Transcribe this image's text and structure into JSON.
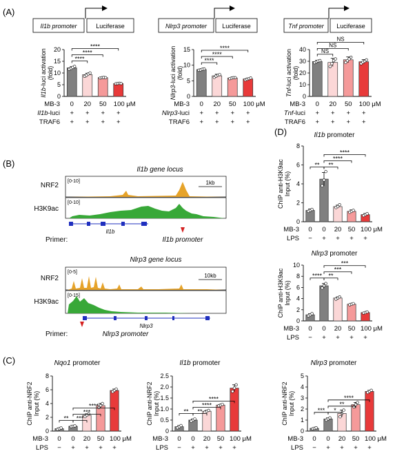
{
  "panel_labels": {
    "A": "(A)",
    "B": "(B)",
    "C": "(C)",
    "D": "(D)"
  },
  "unit": "μM",
  "panelA": {
    "constructs": [
      {
        "promoter": "Il1b promoter",
        "reporter": "Luciferase"
      },
      {
        "promoter": "Nlrp3 promoter",
        "reporter": "Luciferase"
      },
      {
        "promoter": "Tnf promoter",
        "reporter": "Luciferase"
      }
    ],
    "row_labels": [
      "MB-3",
      "",
      "TRAF6"
    ],
    "doses": [
      "0",
      "20",
      "50",
      "100 μM"
    ],
    "signs": [
      "+",
      "+",
      "+",
      "+"
    ]
  },
  "panelB": {
    "il1b": {
      "title": "Il1b gene locus",
      "track1": {
        "name": "NRF2",
        "range": "[0-10]"
      },
      "track2": {
        "name": "H3K9ac",
        "range": "[0-10]"
      },
      "scale": "1kb",
      "gene": "Il1b",
      "primer_label": "Primer:",
      "promoter": "Il1b promoter"
    },
    "nlrp3": {
      "title": "Nlrp3 gene locus",
      "track1": {
        "name": "NRF2",
        "range": "[0-5]"
      },
      "track2": {
        "name": "H3K9ac",
        "range": "[0-15]"
      },
      "scale": "10kb",
      "gene": "Nlrp3",
      "primer_label": "Primer:",
      "promoter": "Nlrp3 promoter"
    }
  },
  "lps_row": {
    "mb3": "MB-3",
    "lps": "LPS",
    "doses": [
      "0",
      "0",
      "20",
      "50",
      "100 μM"
    ],
    "signs": [
      "−",
      "+",
      "+",
      "+",
      "+"
    ]
  },
  "colors": [
    "#808080",
    "#fbd7d7",
    "#f59a9a",
    "#ef6b6b",
    "#e83a3a"
  ],
  "chart_data": [
    {
      "type": "bar",
      "panel": "A",
      "categories": [
        "0",
        "20",
        "50",
        "100"
      ],
      "values": [
        12.2,
        9.3,
        8.0,
        5.5
      ],
      "errors": [
        0.5,
        0.6,
        0.2,
        0.2
      ],
      "points": [
        [
          11.6,
          12.0,
          12.4,
          12.8
        ],
        [
          8.6,
          9.0,
          9.6,
          10.0
        ],
        [
          7.9,
          8.0,
          8.1,
          8.0
        ],
        [
          5.4,
          5.5,
          5.6,
          5.5
        ]
      ],
      "ylabel": "Il1b-luci activation (fold)",
      "ylim": [
        0,
        20
      ],
      "yticks": [
        "0",
        "5",
        "10",
        "15",
        "20"
      ],
      "bracket_start": 0,
      "brackets": [
        {
          "to": 1,
          "label": "****"
        },
        {
          "to": 2,
          "label": "****"
        },
        {
          "to": 3,
          "label": "****"
        }
      ],
      "row2": "Il1b-luci"
    },
    {
      "type": "bar",
      "panel": "A",
      "categories": [
        "0",
        "20",
        "50",
        "100"
      ],
      "values": [
        8.6,
        6.6,
        5.9,
        5.6
      ],
      "errors": [
        0.2,
        0.5,
        0.2,
        0.3
      ],
      "points": [
        [
          8.4,
          8.5,
          8.7,
          8.8
        ],
        [
          6.1,
          6.5,
          6.8,
          7.0
        ],
        [
          5.7,
          5.9,
          6.0,
          6.0
        ],
        [
          5.3,
          5.5,
          5.7,
          5.9
        ]
      ],
      "ylabel": "Nlrp3-luci activation (fold)",
      "ylim": [
        0,
        15
      ],
      "yticks": [
        "0",
        "5",
        "10",
        "15"
      ],
      "bracket_start": 0,
      "brackets": [
        {
          "to": 1,
          "label": "****"
        },
        {
          "to": 2,
          "label": "****"
        },
        {
          "to": 3,
          "label": "****"
        }
      ],
      "row2": "Nlrp3-luci"
    },
    {
      "type": "bar",
      "panel": "A",
      "categories": [
        "0",
        "20",
        "50",
        "100"
      ],
      "values": [
        29.8,
        29.0,
        31.3,
        29.6
      ],
      "errors": [
        1.0,
        3.5,
        2.4,
        1.8
      ],
      "points": [
        [
          28.8,
          29.6,
          30.2,
          30.6
        ],
        [
          25.5,
          28.0,
          30.5,
          32.0
        ],
        [
          29.0,
          30.5,
          32.0,
          33.5
        ],
        [
          28.0,
          29.2,
          30.0,
          31.2
        ]
      ],
      "ylabel": "Tnf-luci activation (fold)",
      "ylim": [
        0,
        40
      ],
      "yticks": [
        "0",
        "10",
        "20",
        "30",
        "40"
      ],
      "bracket_start": 0,
      "brackets": [
        {
          "to": 1,
          "label": "NS"
        },
        {
          "to": 2,
          "label": "NS"
        },
        {
          "to": 3,
          "label": "NS"
        }
      ],
      "row2": "Tnf-luci"
    },
    {
      "type": "bar",
      "panel": "D",
      "title": "Il1b promoter",
      "categories": [
        "0",
        "0",
        "20",
        "50",
        "100"
      ],
      "values": [
        1.2,
        4.5,
        1.6,
        1.1,
        0.75
      ],
      "errors": [
        0.15,
        0.7,
        0.15,
        0.15,
        0.12
      ],
      "points": [
        [
          1.1,
          1.2,
          1.3
        ],
        [
          3.8,
          4.4,
          5.3
        ],
        [
          1.5,
          1.6,
          1.8
        ],
        [
          1.0,
          1.1,
          1.2
        ],
        [
          0.65,
          0.75,
          0.85
        ]
      ],
      "ylabel": "ChIP anti-H3K9ac Input (%)",
      "ylim": [
        0,
        8
      ],
      "yticks": [
        "0",
        "2",
        "4",
        "6",
        "8"
      ],
      "bracket_pairs": [
        {
          "from": 0,
          "to": 1,
          "label": "**"
        },
        {
          "from": 1,
          "to": 2,
          "label": "**"
        },
        {
          "from": 1,
          "to": 3,
          "label": "****"
        },
        {
          "from": 1,
          "to": 4,
          "label": "****"
        }
      ]
    },
    {
      "type": "bar",
      "panel": "D",
      "title": "Nlrp3 promoter",
      "categories": [
        "0",
        "0",
        "20",
        "50",
        "100"
      ],
      "values": [
        1.1,
        6.3,
        4.1,
        3.0,
        1.5
      ],
      "errors": [
        0.2,
        0.4,
        0.2,
        0.1,
        0.1
      ],
      "points": [
        [
          0.9,
          1.1,
          1.3
        ],
        [
          5.9,
          6.3,
          6.7
        ],
        [
          3.9,
          4.1,
          4.3
        ],
        [
          2.9,
          3.0,
          3.1
        ],
        [
          1.4,
          1.5,
          1.6
        ]
      ],
      "ylabel": "ChIP anti-H3K9ac Input (%)",
      "ylim": [
        0,
        10
      ],
      "yticks": [
        "0",
        "2",
        "4",
        "6",
        "8",
        "10"
      ],
      "bracket_pairs": [
        {
          "from": 0,
          "to": 1,
          "label": "****"
        },
        {
          "from": 1,
          "to": 2,
          "label": "**"
        },
        {
          "from": 1,
          "to": 3,
          "label": "***"
        },
        {
          "from": 1,
          "to": 4,
          "label": "***"
        }
      ]
    },
    {
      "type": "bar",
      "panel": "C",
      "title": "Nqo1 promoter",
      "categories": [
        "0",
        "0",
        "20",
        "50",
        "100"
      ],
      "values": [
        0.35,
        0.7,
        2.3,
        3.7,
        5.9
      ],
      "errors": [
        0.1,
        0.05,
        0.2,
        0.3,
        0.2
      ],
      "points": [
        [
          0.25,
          0.35,
          0.45
        ],
        [
          0.65,
          0.7,
          0.75
        ],
        [
          2.1,
          2.3,
          2.5
        ],
        [
          3.4,
          3.7,
          4.0
        ],
        [
          5.7,
          5.9,
          6.1
        ]
      ],
      "ylabel": "ChIP anti-NRF2 Input (%)",
      "ylim": [
        0,
        8
      ],
      "yticks": [
        "0",
        "2",
        "4",
        "6",
        "8"
      ],
      "bracket_pairs": [
        {
          "from": 0,
          "to": 1,
          "label": "**"
        },
        {
          "from": 1,
          "to": 2,
          "label": "***"
        },
        {
          "from": 1,
          "to": 3,
          "label": "***"
        },
        {
          "from": 1,
          "to": 4,
          "label": "****"
        }
      ]
    },
    {
      "type": "bar",
      "panel": "C",
      "title": "Il1b promoter",
      "categories": [
        "0",
        "0",
        "20",
        "50",
        "100"
      ],
      "values": [
        0.2,
        0.5,
        0.9,
        1.18,
        1.95
      ],
      "errors": [
        0.05,
        0.05,
        0.04,
        0.03,
        0.15
      ],
      "points": [
        [
          0.15,
          0.2,
          0.25
        ],
        [
          0.45,
          0.5,
          0.55
        ],
        [
          0.86,
          0.9,
          0.94
        ],
        [
          1.15,
          1.18,
          1.21
        ],
        [
          1.8,
          1.95,
          2.1
        ]
      ],
      "ylabel": "ChIP anti-NRF2 Input (%)",
      "ylim": [
        0,
        2.5
      ],
      "yticks": [
        "0",
        "0.5",
        "1.0",
        "1.5",
        "2.0",
        "2.5"
      ],
      "bracket_pairs": [
        {
          "from": 0,
          "to": 1,
          "label": "**"
        },
        {
          "from": 1,
          "to": 2,
          "label": "**"
        },
        {
          "from": 1,
          "to": 3,
          "label": "****"
        },
        {
          "from": 1,
          "to": 4,
          "label": "****"
        }
      ]
    },
    {
      "type": "bar",
      "panel": "C",
      "title": "Nlrp3 promoter",
      "categories": [
        "0",
        "0",
        "20",
        "50",
        "100"
      ],
      "values": [
        0.25,
        1.1,
        1.6,
        2.4,
        3.6
      ],
      "errors": [
        0.05,
        0.1,
        0.3,
        0.2,
        0.1
      ],
      "points": [
        [
          0.2,
          0.25,
          0.3
        ],
        [
          1.0,
          1.1,
          1.2
        ],
        [
          1.3,
          1.6,
          1.9
        ],
        [
          2.2,
          2.4,
          2.6
        ],
        [
          3.5,
          3.6,
          3.7
        ]
      ],
      "ylabel": "ChIP anti-NRF2 Input (%)",
      "ylim": [
        0,
        5
      ],
      "yticks": [
        "0",
        "1",
        "2",
        "3",
        "4",
        "5"
      ],
      "bracket_pairs": [
        {
          "from": 0,
          "to": 1,
          "label": "***"
        },
        {
          "from": 1,
          "to": 2,
          "label": "*"
        },
        {
          "from": 1,
          "to": 3,
          "label": "**"
        },
        {
          "from": 1,
          "to": 4,
          "label": "****"
        }
      ]
    }
  ]
}
